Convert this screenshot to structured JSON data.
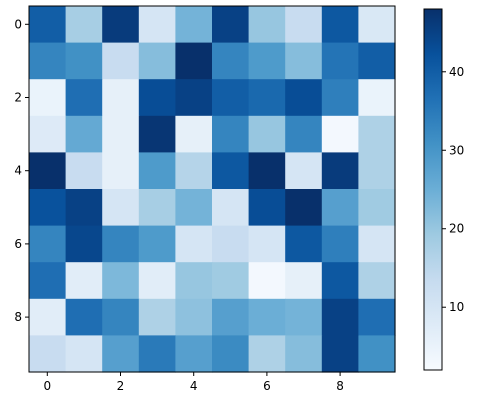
{
  "chart_data": {
    "type": "heatmap",
    "title": "",
    "xlabel": "",
    "ylabel": "",
    "colormap": "Blues",
    "x_ticks": [
      0,
      2,
      4,
      6,
      8
    ],
    "y_ticks": [
      0,
      2,
      4,
      6,
      8
    ],
    "colorbar": {
      "min": 2,
      "max": 48,
      "ticks": [
        10,
        20,
        30,
        40
      ]
    },
    "matrix": [
      [
        40,
        18,
        46,
        10,
        24,
        45,
        20,
        13,
        41,
        9
      ],
      [
        33,
        31,
        13,
        22,
        48,
        33,
        29,
        22,
        36,
        40
      ],
      [
        5,
        37,
        6,
        43,
        45,
        40,
        38,
        43,
        34,
        5
      ],
      [
        8,
        26,
        6,
        47,
        6,
        33,
        20,
        33,
        3,
        17
      ],
      [
        48,
        13,
        6,
        29,
        16,
        41,
        48,
        10,
        46,
        17
      ],
      [
        42,
        45,
        10,
        18,
        24,
        10,
        43,
        48,
        28,
        19
      ],
      [
        33,
        44,
        33,
        29,
        10,
        13,
        10,
        41,
        34,
        10
      ],
      [
        37,
        7,
        23,
        7,
        20,
        19,
        3,
        6,
        41,
        17
      ],
      [
        7,
        37,
        33,
        17,
        21,
        28,
        25,
        24,
        45,
        37
      ],
      [
        13,
        10,
        28,
        35,
        28,
        32,
        17,
        22,
        45,
        31
      ]
    ]
  }
}
